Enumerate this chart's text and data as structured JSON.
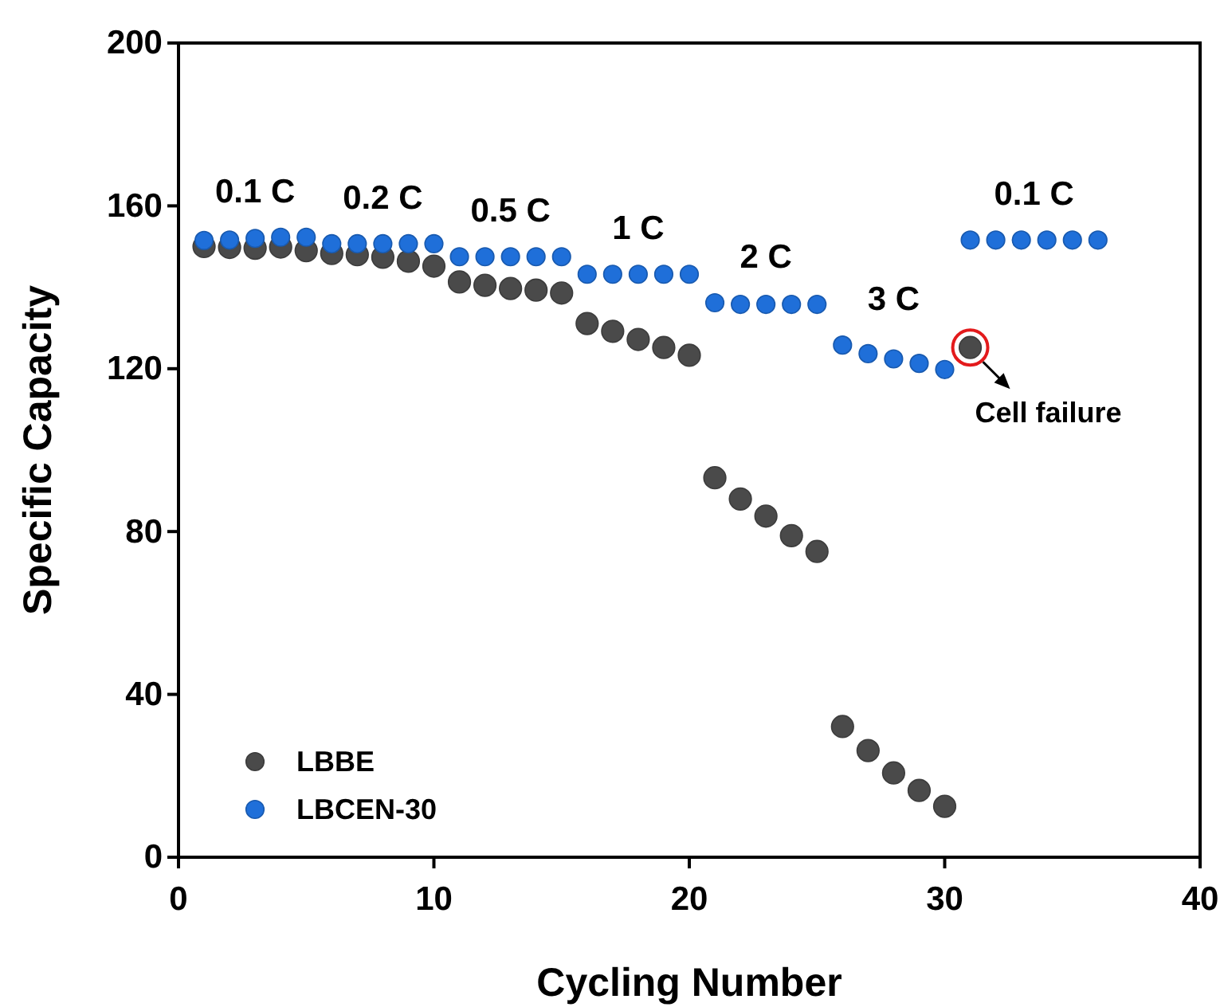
{
  "chart_data": {
    "type": "scatter",
    "xlabel": "Cycling Number",
    "ylabel": "Specific Capacity",
    "xlim": [
      0,
      40
    ],
    "ylim": [
      0,
      200
    ],
    "xticks": [
      0,
      10,
      20,
      30,
      40
    ],
    "yticks": [
      0,
      40,
      80,
      120,
      160,
      200
    ],
    "grid": false,
    "legend": "bottom left",
    "marker": "circle",
    "x": [
      1,
      2,
      3,
      4,
      5,
      6,
      7,
      8,
      9,
      10,
      11,
      12,
      13,
      14,
      15,
      16,
      17,
      18,
      19,
      20,
      21,
      22,
      23,
      24,
      25,
      26,
      27,
      28,
      29,
      30,
      31
    ],
    "series": [
      {
        "name": "LBBE",
        "color": "#4a4a4a",
        "values": [
          150,
          149.8,
          149.6,
          149.9,
          149,
          148.3,
          148,
          147.4,
          146.4,
          145.2,
          141.3,
          140.5,
          139.7,
          139.3,
          138.6,
          131.1,
          129.2,
          127.2,
          125.2,
          123.3,
          93.2,
          88,
          83.8,
          79,
          75.1,
          32.1,
          26.2,
          20.7,
          16.4,
          12.5,
          125.2
        ]
      },
      {
        "name": "LBCEN-30",
        "color": "#1f6fd9",
        "x": [
          1,
          2,
          3,
          4,
          5,
          6,
          7,
          8,
          9,
          10,
          11,
          12,
          13,
          14,
          15,
          16,
          17,
          18,
          19,
          20,
          21,
          22,
          23,
          24,
          25,
          26,
          27,
          28,
          29,
          30,
          31,
          32,
          33,
          34,
          35,
          36
        ],
        "values": [
          151.5,
          151.6,
          152,
          152.3,
          152.3,
          150.7,
          150.7,
          150.7,
          150.7,
          150.7,
          147.5,
          147.5,
          147.5,
          147.5,
          147.5,
          143.2,
          143.2,
          143.2,
          143.2,
          143.2,
          136.2,
          135.8,
          135.8,
          135.8,
          135.8,
          125.8,
          123.7,
          122.4,
          121.3,
          119.8,
          151.6,
          151.6,
          151.6,
          151.6,
          151.6,
          151.6
        ]
      }
    ],
    "annotations": [
      "0.1 C",
      "0.2 C",
      "0.5 C",
      "1 C",
      "2 C",
      "3 C",
      "0.1 C",
      {
        "text": "Cell failure",
        "x": 31,
        "y": 125.2
      }
    ]
  }
}
